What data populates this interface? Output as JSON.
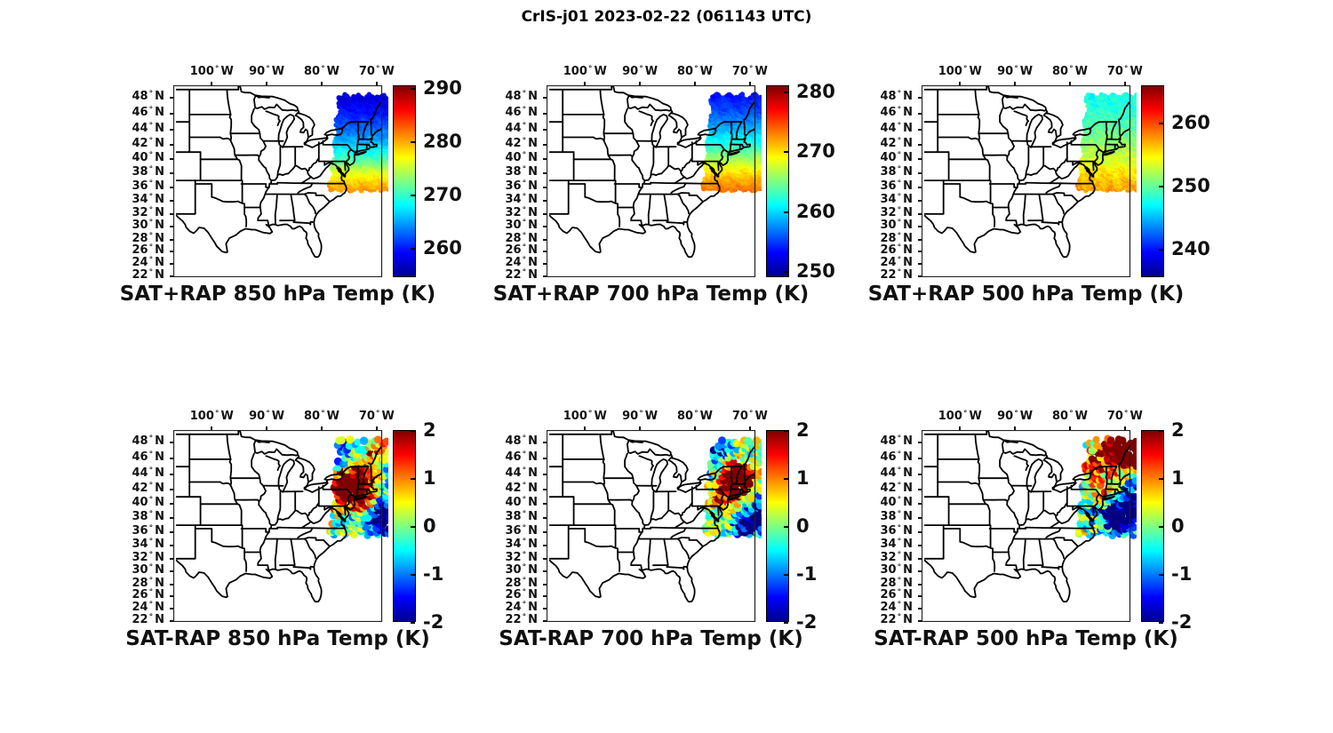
{
  "figure": {
    "title": "CrIS-j01 2023-02-22 (061143 UTC)"
  },
  "chart_data": {
    "type": "scatter",
    "subtype": "satellite-sounding-map-grid",
    "title": "CrIS-j01 2023-02-22 (061143 UTC)",
    "grid": {
      "rows": 2,
      "cols": 3
    },
    "colormap": "jet",
    "map": {
      "region": "central and eastern United States",
      "lon_min_deg_e": -107.0,
      "lon_max_deg_e": -69.0,
      "lat_bottom_deg_n": 21.8,
      "lat_top_deg_n": 49.5,
      "projection": "mercator-like",
      "lon_ticks_deg_w": [
        100,
        90,
        80,
        70
      ],
      "lat_ticks_deg_n": [
        48,
        46,
        44,
        42,
        40,
        38,
        36,
        34,
        32,
        30,
        28,
        26,
        24,
        22
      ],
      "grid_lines": false
    },
    "swath": {
      "description": "CrIS overpass swath of retrieval footprints over the northeastern US and adjacent Atlantic",
      "lat_min": 35.6,
      "lat_max": 48.3,
      "west_edge_lon_at_36N": -78.4,
      "west_edge_lon_slope_per_deg_lat": 0.13,
      "east_edge_lon": -67.6
    },
    "panels": [
      {
        "caption": "SAT+RAP 850 hPa Temp (K)",
        "kind": "absolute",
        "units": "K",
        "colorbar": {
          "min": 254.5,
          "max": 290.5,
          "ticks": [
            260,
            270,
            280,
            290
          ]
        },
        "gradient_anchors_lat_K": [
          [
            35.6,
            281.0
          ],
          [
            37.0,
            278.5
          ],
          [
            38.5,
            275.5
          ],
          [
            40.0,
            271.0
          ],
          [
            42.0,
            266.5
          ],
          [
            44.0,
            263.0
          ],
          [
            46.0,
            260.0
          ],
          [
            48.3,
            257.5
          ]
        ],
        "noise_K": 0.9,
        "dot_radius_px": 2.8
      },
      {
        "caption": "SAT+RAP 700 hPa Temp (K)",
        "kind": "absolute",
        "units": "K",
        "colorbar": {
          "min": 249.0,
          "max": 281.0,
          "ticks": [
            250,
            260,
            270,
            280
          ]
        },
        "gradient_anchors_lat_K": [
          [
            35.6,
            273.5
          ],
          [
            37.0,
            272.0
          ],
          [
            38.5,
            269.5
          ],
          [
            40.0,
            266.5
          ],
          [
            42.0,
            262.5
          ],
          [
            44.0,
            259.0
          ],
          [
            46.0,
            256.0
          ],
          [
            48.3,
            253.5
          ]
        ],
        "noise_K": 0.8,
        "dot_radius_px": 2.8
      },
      {
        "caption": "SAT+RAP 500 hPa Temp (K)",
        "kind": "absolute",
        "units": "K",
        "colorbar": {
          "min": 235.5,
          "max": 266.0,
          "ticks": [
            240,
            250,
            260
          ]
        },
        "gradient_anchors_lat_K": [
          [
            35.6,
            257.5
          ],
          [
            37.0,
            256.5
          ],
          [
            38.5,
            255.0
          ],
          [
            40.0,
            253.5
          ],
          [
            42.0,
            251.5
          ],
          [
            44.0,
            250.0
          ],
          [
            46.0,
            248.5
          ],
          [
            48.3,
            247.5
          ]
        ],
        "noise_K": 1.2,
        "dot_radius_px": 2.8
      },
      {
        "caption": "SAT-RAP 850 hPa Temp (K)",
        "kind": "difference",
        "units": "K",
        "colorbar": {
          "min": -2,
          "max": 2,
          "ticks": [
            2,
            1,
            0,
            -1,
            -2
          ]
        },
        "diff_blobs_lon_lat_ampK_sigma": [
          [
            -75.3,
            41.8,
            2.5,
            1.9
          ],
          [
            -72.9,
            42.8,
            1.9,
            1.5
          ],
          [
            -70.0,
            46.6,
            1.2,
            1.2
          ],
          [
            -76.4,
            46.6,
            -1.5,
            1.0
          ],
          [
            -67.6,
            37.4,
            -2.0,
            1.6
          ],
          [
            -69.7,
            39.0,
            -1.7,
            1.3
          ],
          [
            -74.9,
            38.2,
            -1.0,
            0.9
          ],
          [
            -66.9,
            44.9,
            -0.9,
            1.0
          ],
          [
            -71.8,
            39.8,
            0.9,
            0.9
          ],
          [
            -68.9,
            42.4,
            -0.6,
            1.0
          ]
        ],
        "noise_K": 1.0,
        "dot_radius_px": 4.3
      },
      {
        "caption": "SAT-RAP 700 hPa Temp (K)",
        "kind": "difference",
        "units": "K",
        "colorbar": {
          "min": -2,
          "max": 2,
          "ticks": [
            2,
            1,
            0,
            -1,
            -2
          ]
        },
        "diff_blobs_lon_lat_ampK_sigma": [
          [
            -75.6,
            46.6,
            -1.8,
            1.2
          ],
          [
            -73.2,
            44.2,
            1.8,
            1.6
          ],
          [
            -71.3,
            42.3,
            1.9,
            1.4
          ],
          [
            -75.0,
            41.4,
            1.5,
            1.1
          ],
          [
            -68.2,
            38.2,
            -2.0,
            1.6
          ],
          [
            -71.2,
            36.8,
            -1.6,
            1.2
          ],
          [
            -66.6,
            41.2,
            -1.3,
            1.2
          ],
          [
            -69.3,
            44.2,
            0.9,
            1.0
          ],
          [
            -76.8,
            43.4,
            -0.7,
            0.8
          ]
        ],
        "noise_K": 1.0,
        "dot_radius_px": 4.3
      },
      {
        "caption": "SAT-RAP 500 hPa Temp (K)",
        "kind": "difference",
        "units": "K",
        "colorbar": {
          "min": -2,
          "max": 2,
          "ticks": [
            2,
            1,
            0,
            -1,
            -2
          ]
        },
        "diff_blobs_lon_lat_ampK_sigma": [
          [
            -71.5,
            47.4,
            2.6,
            1.8
          ],
          [
            -68.3,
            46.6,
            2.2,
            1.4
          ],
          [
            -76.2,
            45.4,
            1.2,
            1.1
          ],
          [
            -68.3,
            39.6,
            -2.6,
            2.0
          ],
          [
            -70.8,
            37.4,
            -1.8,
            1.3
          ],
          [
            -74.2,
            41.6,
            1.0,
            1.1
          ],
          [
            -66.9,
            42.9,
            -1.3,
            1.0
          ],
          [
            -73.0,
            38.8,
            -1.1,
            1.0
          ]
        ],
        "noise_K": 1.1,
        "dot_radius_px": 4.3
      }
    ]
  }
}
